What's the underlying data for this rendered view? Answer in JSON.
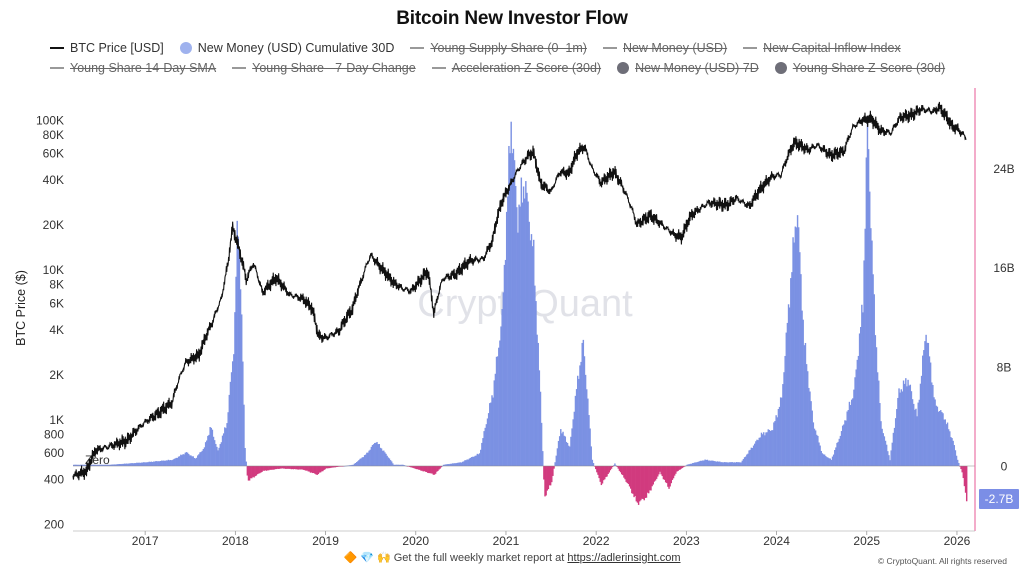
{
  "title": "Bitcoin New Investor Flow",
  "legend": {
    "row1": [
      {
        "label": "BTC Price [USD]",
        "marker": "line",
        "color": "#111111",
        "active": true
      },
      {
        "label": "New Money (USD) Cumulative 30D",
        "marker": "dot",
        "color": "#9fb2ee",
        "active": true
      },
      {
        "label": "Young Supply Share (0–1m)",
        "marker": "line",
        "color": "#999999",
        "active": false
      },
      {
        "label": "New Money (USD)",
        "marker": "line",
        "color": "#999999",
        "active": false
      },
      {
        "label": "New Capital Inflow Index",
        "marker": "line",
        "color": "#999999",
        "active": false
      }
    ],
    "row2": [
      {
        "label": "Young Share  14-Day SMA",
        "marker": "line",
        "color": "#999999",
        "active": false
      },
      {
        "label": "Young Share - 7-Day Change",
        "marker": "line",
        "color": "#999999",
        "active": false
      },
      {
        "label": "Acceleration Z-Score (30d)",
        "marker": "line",
        "color": "#999999",
        "active": false
      },
      {
        "label": "New Money (USD) 7D",
        "marker": "dot",
        "color": "#6e6e78",
        "active": false
      },
      {
        "label": "Young Share Z-Score (30d)",
        "marker": "dot",
        "color": "#6e6e78",
        "active": false
      }
    ]
  },
  "watermark": "CryptoQuant",
  "footer": {
    "icons": "🔶 💎 🙌",
    "text": "Get the full weekly market report at",
    "link_text": "https://adlerinsight.com"
  },
  "copyright": "© CryptoQuant. All rights reserved",
  "right_tag": "-2.7B",
  "zero_label": "Zero",
  "chart_data": {
    "type": "line",
    "xlim": [
      2016.2,
      2026.2
    ],
    "x_ticks": [
      "2017",
      "2018",
      "2019",
      "2020",
      "2021",
      "2022",
      "2023",
      "2024",
      "2025",
      "2026"
    ],
    "y_left": {
      "label": "BTC Price ($)",
      "scale": "log",
      "ylim": [
        200,
        140000
      ],
      "ticks": [
        {
          "v": 200,
          "t": "200"
        },
        {
          "v": 400,
          "t": "400"
        },
        {
          "v": 600,
          "t": "600"
        },
        {
          "v": 800,
          "t": "800"
        },
        {
          "v": 1000,
          "t": "1K"
        },
        {
          "v": 2000,
          "t": "2K"
        },
        {
          "v": 4000,
          "t": "4K"
        },
        {
          "v": 6000,
          "t": "6K"
        },
        {
          "v": 8000,
          "t": "8K"
        },
        {
          "v": 10000,
          "t": "10K"
        },
        {
          "v": 20000,
          "t": "20K"
        },
        {
          "v": 40000,
          "t": "40K"
        },
        {
          "v": 60000,
          "t": "60K"
        },
        {
          "v": 80000,
          "t": "80K"
        },
        {
          "v": 100000,
          "t": "100K"
        }
      ]
    },
    "y_right": {
      "scale": "linear",
      "ticks": [
        {
          "v": 0,
          "t": "0"
        },
        {
          "v": 8,
          "t": "8B"
        },
        {
          "v": 16,
          "t": "16B"
        },
        {
          "v": 24,
          "t": "24B"
        }
      ]
    },
    "series": [
      {
        "name": "BTC Price [USD]",
        "color": "#111111",
        "axis": "left",
        "points": [
          [
            2016.2,
            420
          ],
          [
            2016.35,
            450
          ],
          [
            2016.45,
            620
          ],
          [
            2016.6,
            660
          ],
          [
            2016.8,
            720
          ],
          [
            2017.0,
            960
          ],
          [
            2017.15,
            1100
          ],
          [
            2017.3,
            1300
          ],
          [
            2017.45,
            2400
          ],
          [
            2017.6,
            2700
          ],
          [
            2017.75,
            4500
          ],
          [
            2017.85,
            6500
          ],
          [
            2017.92,
            11000
          ],
          [
            2017.97,
            19000
          ],
          [
            2018.05,
            13000
          ],
          [
            2018.12,
            8500
          ],
          [
            2018.2,
            11000
          ],
          [
            2018.3,
            7000
          ],
          [
            2018.45,
            8800
          ],
          [
            2018.6,
            6800
          ],
          [
            2018.75,
            6400
          ],
          [
            2018.85,
            5500
          ],
          [
            2018.92,
            3600
          ],
          [
            2019.0,
            3500
          ],
          [
            2019.15,
            3900
          ],
          [
            2019.3,
            5500
          ],
          [
            2019.4,
            8500
          ],
          [
            2019.5,
            12500
          ],
          [
            2019.6,
            10500
          ],
          [
            2019.75,
            8200
          ],
          [
            2019.85,
            7500
          ],
          [
            2019.95,
            7200
          ],
          [
            2020.05,
            8500
          ],
          [
            2020.13,
            9800
          ],
          [
            2020.2,
            5000
          ],
          [
            2020.3,
            8700
          ],
          [
            2020.45,
            9400
          ],
          [
            2020.6,
            11500
          ],
          [
            2020.75,
            11800
          ],
          [
            2020.85,
            15500
          ],
          [
            2020.95,
            28000
          ],
          [
            2021.05,
            37000
          ],
          [
            2021.15,
            48000
          ],
          [
            2021.25,
            58000
          ],
          [
            2021.3,
            61000
          ],
          [
            2021.38,
            38000
          ],
          [
            2021.5,
            33000
          ],
          [
            2021.6,
            45000
          ],
          [
            2021.7,
            44000
          ],
          [
            2021.8,
            62000
          ],
          [
            2021.87,
            66000
          ],
          [
            2021.95,
            48000
          ],
          [
            2022.05,
            38000
          ],
          [
            2022.2,
            45000
          ],
          [
            2022.35,
            30000
          ],
          [
            2022.45,
            20000
          ],
          [
            2022.6,
            23000
          ],
          [
            2022.75,
            19500
          ],
          [
            2022.87,
            17000
          ],
          [
            2022.95,
            16500
          ],
          [
            2023.05,
            23000
          ],
          [
            2023.25,
            28000
          ],
          [
            2023.45,
            27000
          ],
          [
            2023.55,
            30000
          ],
          [
            2023.7,
            26500
          ],
          [
            2023.82,
            34500
          ],
          [
            2023.95,
            42000
          ],
          [
            2024.05,
            43000
          ],
          [
            2024.15,
            62000
          ],
          [
            2024.2,
            71000
          ],
          [
            2024.35,
            63000
          ],
          [
            2024.45,
            68000
          ],
          [
            2024.6,
            58000
          ],
          [
            2024.75,
            62000
          ],
          [
            2024.85,
            90000
          ],
          [
            2024.95,
            100000
          ],
          [
            2025.05,
            102000
          ],
          [
            2025.15,
            85000
          ],
          [
            2025.27,
            82000
          ],
          [
            2025.37,
            104000
          ],
          [
            2025.5,
            108000
          ],
          [
            2025.6,
            118000
          ],
          [
            2025.75,
            114000
          ],
          [
            2025.8,
            122000
          ],
          [
            2025.87,
            108000
          ],
          [
            2025.95,
            90000
          ],
          [
            2026.0,
            88000
          ],
          [
            2026.1,
            76000
          ]
        ]
      },
      {
        "name": "New Money (USD) Cumulative 30D",
        "color": "#7b91e3",
        "neg_color": "#d13a7e",
        "axis": "right",
        "unit": "B",
        "points": [
          [
            2016.2,
            0.1
          ],
          [
            2016.6,
            0.1
          ],
          [
            2017.0,
            0.3
          ],
          [
            2017.3,
            0.5
          ],
          [
            2017.45,
            1.1
          ],
          [
            2017.55,
            0.6
          ],
          [
            2017.65,
            1.5
          ],
          [
            2017.72,
            3.2
          ],
          [
            2017.8,
            1.2
          ],
          [
            2017.9,
            3.5
          ],
          [
            2017.98,
            10.0
          ],
          [
            2018.02,
            20.5
          ],
          [
            2018.05,
            15.0
          ],
          [
            2018.1,
            1.5
          ],
          [
            2018.13,
            -1.2
          ],
          [
            2018.3,
            -0.4
          ],
          [
            2018.5,
            -0.2
          ],
          [
            2018.75,
            -0.3
          ],
          [
            2018.9,
            -0.7
          ],
          [
            2019.0,
            -0.2
          ],
          [
            2019.3,
            0.1
          ],
          [
            2019.45,
            1.0
          ],
          [
            2019.55,
            2.0
          ],
          [
            2019.68,
            0.8
          ],
          [
            2019.75,
            0.1
          ],
          [
            2019.85,
            0.1
          ],
          [
            2020.2,
            -0.7
          ],
          [
            2020.3,
            0.1
          ],
          [
            2020.5,
            0.3
          ],
          [
            2020.7,
            1.0
          ],
          [
            2020.85,
            6.0
          ],
          [
            2020.95,
            12.0
          ],
          [
            2021.05,
            28.0
          ],
          [
            2021.12,
            20.0
          ],
          [
            2021.2,
            23.0
          ],
          [
            2021.3,
            17.0
          ],
          [
            2021.38,
            5.0
          ],
          [
            2021.42,
            -2.5
          ],
          [
            2021.5,
            -1.3
          ],
          [
            2021.6,
            3.0
          ],
          [
            2021.7,
            1.5
          ],
          [
            2021.78,
            6.5
          ],
          [
            2021.85,
            10.0
          ],
          [
            2021.95,
            0.5
          ],
          [
            2022.05,
            -1.5
          ],
          [
            2022.2,
            0.2
          ],
          [
            2022.35,
            -1.5
          ],
          [
            2022.45,
            -3.0
          ],
          [
            2022.55,
            -2.5
          ],
          [
            2022.7,
            -0.5
          ],
          [
            2022.8,
            -1.8
          ],
          [
            2022.88,
            -0.5
          ],
          [
            2023.0,
            0.1
          ],
          [
            2023.2,
            0.5
          ],
          [
            2023.4,
            0.3
          ],
          [
            2023.6,
            0.3
          ],
          [
            2023.82,
            2.5
          ],
          [
            2023.95,
            3.0
          ],
          [
            2024.05,
            5.5
          ],
          [
            2024.15,
            15.0
          ],
          [
            2024.22,
            21.0
          ],
          [
            2024.3,
            10.0
          ],
          [
            2024.4,
            3.5
          ],
          [
            2024.5,
            1.0
          ],
          [
            2024.6,
            0.5
          ],
          [
            2024.7,
            2.5
          ],
          [
            2024.85,
            6.0
          ],
          [
            2024.95,
            13.0
          ],
          [
            2025.0,
            27.5
          ],
          [
            2025.08,
            12.0
          ],
          [
            2025.15,
            3.5
          ],
          [
            2025.25,
            0.5
          ],
          [
            2025.35,
            6.0
          ],
          [
            2025.45,
            7.0
          ],
          [
            2025.55,
            4.0
          ],
          [
            2025.65,
            11.0
          ],
          [
            2025.75,
            5.0
          ],
          [
            2025.85,
            4.0
          ],
          [
            2025.95,
            2.0
          ],
          [
            2026.0,
            0.5
          ],
          [
            2026.05,
            -0.5
          ],
          [
            2026.1,
            -2.7
          ]
        ]
      }
    ],
    "annotations": [
      "Zero"
    ]
  }
}
